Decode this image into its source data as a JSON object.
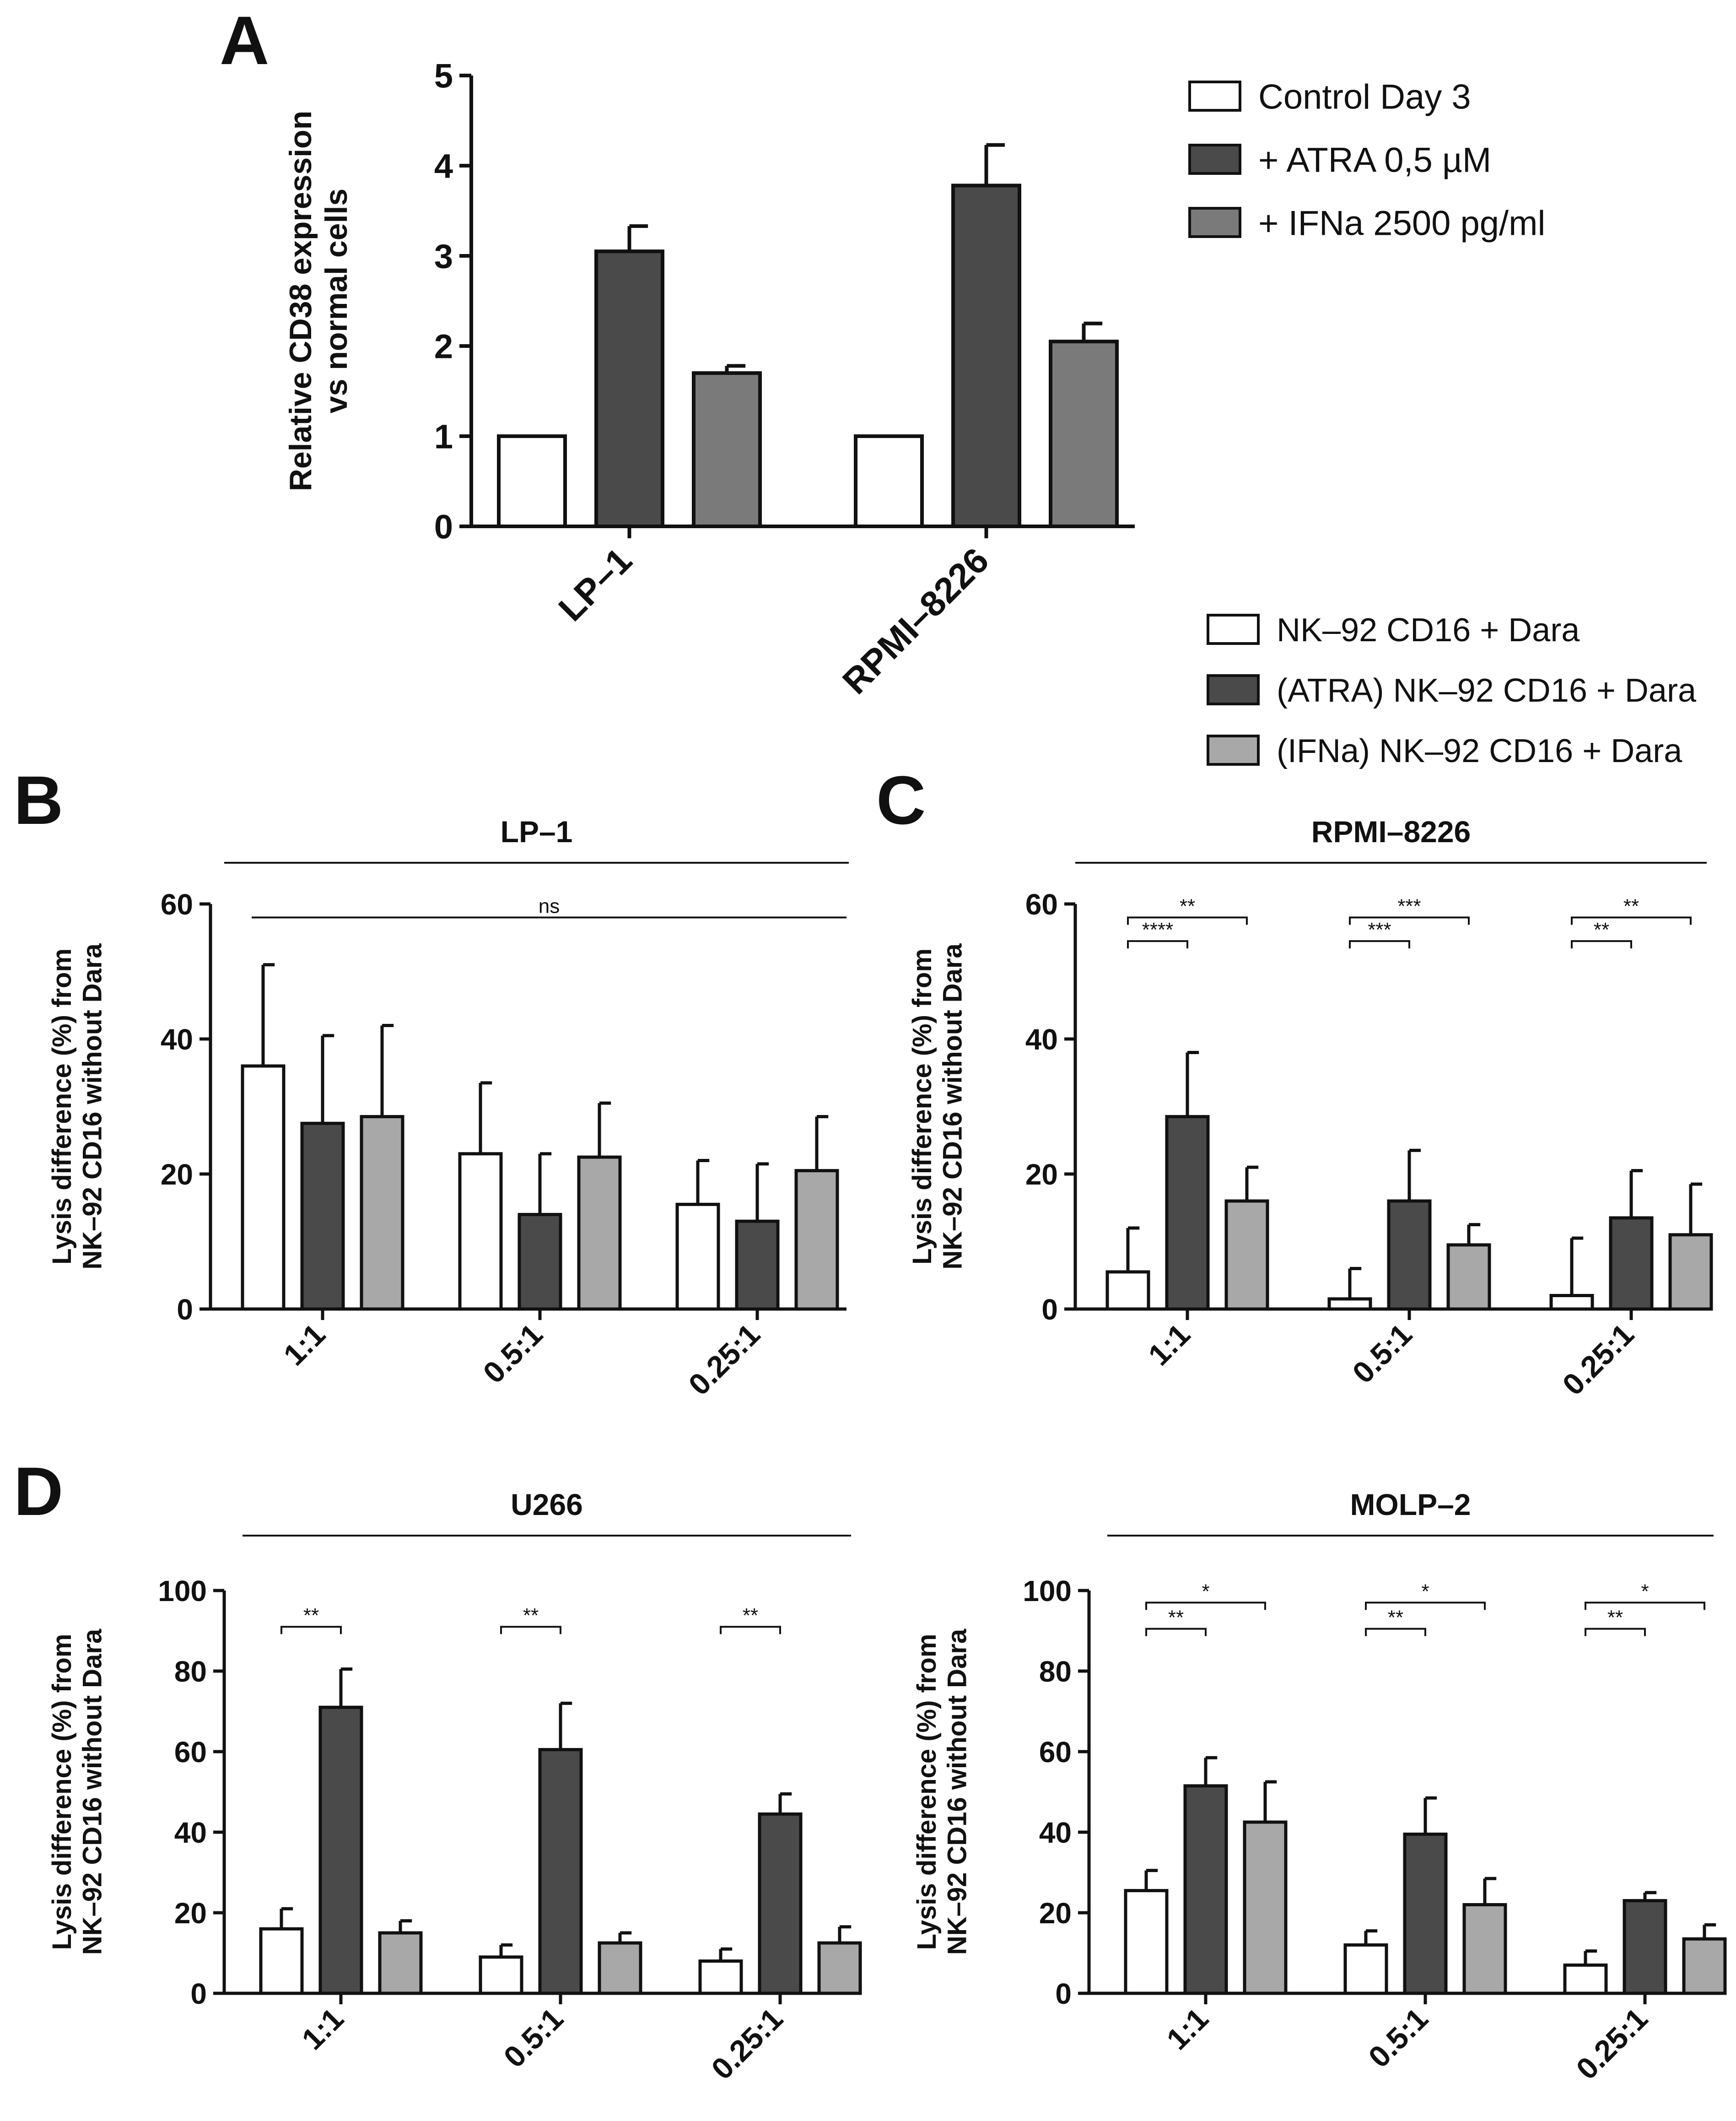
{
  "colors": {
    "white": "#ffffff",
    "dark": "#4a4a4a",
    "mid": "#7a7a7a",
    "light": "#a8a8a8",
    "stroke": "#111111"
  },
  "legend_top": {
    "entries": [
      {
        "label": "Control Day 3",
        "color": "#ffffff"
      },
      {
        "label": "+ ATRA 0,5 µM",
        "color": "#4a4a4a"
      },
      {
        "label": "+ IFNa 2500 pg/ml",
        "color": "#7a7a7a"
      }
    ]
  },
  "legend_bottom": {
    "entries": [
      {
        "label": "NK–92 CD16 + Dara",
        "color": "#ffffff"
      },
      {
        "label": "(ATRA) NK–92 CD16 + Dara",
        "color": "#4a4a4a"
      },
      {
        "label": "(IFNa) NK–92 CD16 + Dara",
        "color": "#a8a8a8"
      }
    ]
  },
  "chart_data": [
    {
      "panel": "A",
      "type": "bar",
      "title": "",
      "ylabel": [
        "Relative CD38 expression",
        "vs normal cells"
      ],
      "ylim": [
        0,
        5
      ],
      "yticks": [
        0,
        1,
        2,
        3,
        4,
        5
      ],
      "categories": [
        "LP–1",
        "RPMI–8226"
      ],
      "series": [
        {
          "name": "Control Day 3",
          "values": [
            1.0,
            1.0
          ],
          "errors": [
            0,
            0
          ]
        },
        {
          "name": "+ ATRA 0,5 µM",
          "values": [
            3.05,
            3.78
          ],
          "errors": [
            0.28,
            0.45
          ]
        },
        {
          "name": "+ IFNa 2500 pg/ml",
          "values": [
            1.7,
            2.05
          ],
          "errors": [
            0.08,
            0.2
          ]
        }
      ],
      "significance": []
    },
    {
      "panel": "B",
      "type": "bar",
      "title": "LP–1",
      "ylabel": [
        "Lysis difference (%) from",
        "NK–92 CD16 without Dara"
      ],
      "ylim": [
        0,
        60
      ],
      "yticks": [
        0,
        20,
        40,
        60
      ],
      "categories": [
        "1:1",
        "0.5:1",
        "0.25:1"
      ],
      "series": [
        {
          "name": "NK–92 CD16 + Dara",
          "values": [
            36,
            23,
            15.5
          ],
          "errors": [
            15,
            10.5,
            6.5
          ]
        },
        {
          "name": "(ATRA) NK–92 CD16 + Dara",
          "values": [
            27.5,
            14,
            13
          ],
          "errors": [
            13,
            9,
            8.5
          ]
        },
        {
          "name": "(IFNa) NK–92 CD16 + Dara",
          "values": [
            28.5,
            22.5,
            20.5
          ],
          "errors": [
            13.5,
            8,
            8
          ]
        }
      ],
      "significance": [
        {
          "text": "ns",
          "from": [
            0,
            0
          ],
          "to": [
            2,
            2
          ],
          "y": 58,
          "style": "line"
        }
      ]
    },
    {
      "panel": "C",
      "type": "bar",
      "title": "RPMI–8226",
      "ylabel": [
        "Lysis difference (%) from",
        "NK–92 CD16 without Dara"
      ],
      "ylim": [
        0,
        60
      ],
      "yticks": [
        0,
        20,
        40,
        60
      ],
      "categories": [
        "1:1",
        "0.5:1",
        "0.25:1"
      ],
      "series": [
        {
          "name": "NK–92 CD16 + Dara",
          "values": [
            5.5,
            1.5,
            2
          ],
          "errors": [
            6.5,
            4.5,
            8.5
          ]
        },
        {
          "name": "(ATRA) NK–92 CD16 + Dara",
          "values": [
            28.5,
            16,
            13.5
          ],
          "errors": [
            9.5,
            7.5,
            7
          ]
        },
        {
          "name": "(IFNa) NK–92 CD16 + Dara",
          "values": [
            16,
            9.5,
            11
          ],
          "errors": [
            5,
            3,
            7.5
          ]
        }
      ],
      "significance": [
        {
          "text": "**",
          "from": [
            0,
            0
          ],
          "to": [
            0,
            2
          ],
          "y": 58,
          "style": "bracket"
        },
        {
          "text": "****",
          "from": [
            0,
            0
          ],
          "to": [
            0,
            1
          ],
          "y": 54.5,
          "style": "bracket"
        },
        {
          "text": "***",
          "from": [
            1,
            0
          ],
          "to": [
            1,
            2
          ],
          "y": 58,
          "style": "bracket"
        },
        {
          "text": "***",
          "from": [
            1,
            0
          ],
          "to": [
            1,
            1
          ],
          "y": 54.5,
          "style": "bracket"
        },
        {
          "text": "**",
          "from": [
            2,
            0
          ],
          "to": [
            2,
            2
          ],
          "y": 58,
          "style": "bracket"
        },
        {
          "text": "**",
          "from": [
            2,
            0
          ],
          "to": [
            2,
            1
          ],
          "y": 54.5,
          "style": "bracket"
        }
      ]
    },
    {
      "panel": "D",
      "type": "bar",
      "title": "U266",
      "ylabel": [
        "Lysis difference (%) from",
        "NK–92 CD16 without Dara"
      ],
      "ylim": [
        0,
        100
      ],
      "yticks": [
        0,
        20,
        40,
        60,
        80,
        100
      ],
      "categories": [
        "1:1",
        "0.5:1",
        "0.25:1"
      ],
      "series": [
        {
          "name": "NK–92 CD16 + Dara",
          "values": [
            16,
            9,
            8
          ],
          "errors": [
            5,
            3,
            3
          ]
        },
        {
          "name": "(ATRA) NK–92 CD16 + Dara",
          "values": [
            71,
            60.5,
            44.5
          ],
          "errors": [
            9.5,
            11.5,
            5
          ]
        },
        {
          "name": "(IFNa) NK–92 CD16 + Dara",
          "values": [
            15,
            12.5,
            12.5
          ],
          "errors": [
            3,
            2.5,
            4
          ]
        }
      ],
      "significance": [
        {
          "text": "**",
          "from": [
            0,
            0
          ],
          "to": [
            0,
            1
          ],
          "y": 91,
          "style": "bracket"
        },
        {
          "text": "**",
          "from": [
            1,
            0
          ],
          "to": [
            1,
            1
          ],
          "y": 91,
          "style": "bracket"
        },
        {
          "text": "**",
          "from": [
            2,
            0
          ],
          "to": [
            2,
            1
          ],
          "y": 91,
          "style": "bracket"
        }
      ]
    },
    {
      "panel": "",
      "type": "bar",
      "title": "MOLP–2",
      "ylabel": [
        "Lysis difference (%) from",
        "NK–92 CD16 without Dara"
      ],
      "ylim": [
        0,
        100
      ],
      "yticks": [
        0,
        20,
        40,
        60,
        80,
        100
      ],
      "categories": [
        "1:1",
        "0.5:1",
        "0.25:1"
      ],
      "series": [
        {
          "name": "NK–92 CD16 + Dara",
          "values": [
            25.5,
            12,
            7
          ],
          "errors": [
            5,
            3.5,
            3.5
          ]
        },
        {
          "name": "(ATRA) NK–92 CD16 + Dara",
          "values": [
            51.5,
            39.5,
            23
          ],
          "errors": [
            7,
            9,
            2
          ]
        },
        {
          "name": "(IFNa) NK–92 CD16 + Dara",
          "values": [
            42.5,
            22,
            13.5
          ],
          "errors": [
            10,
            6.5,
            3.5
          ]
        }
      ],
      "significance": [
        {
          "text": "*",
          "from": [
            0,
            0
          ],
          "to": [
            0,
            2
          ],
          "y": 97,
          "style": "bracket"
        },
        {
          "text": "**",
          "from": [
            0,
            0
          ],
          "to": [
            0,
            1
          ],
          "y": 90.5,
          "style": "bracket"
        },
        {
          "text": "*",
          "from": [
            1,
            0
          ],
          "to": [
            1,
            2
          ],
          "y": 97,
          "style": "bracket"
        },
        {
          "text": "**",
          "from": [
            1,
            0
          ],
          "to": [
            1,
            1
          ],
          "y": 90.5,
          "style": "bracket"
        },
        {
          "text": "*",
          "from": [
            2,
            0
          ],
          "to": [
            2,
            2
          ],
          "y": 97,
          "style": "bracket"
        },
        {
          "text": "**",
          "from": [
            2,
            0
          ],
          "to": [
            2,
            1
          ],
          "y": 90.5,
          "style": "bracket"
        }
      ]
    }
  ]
}
